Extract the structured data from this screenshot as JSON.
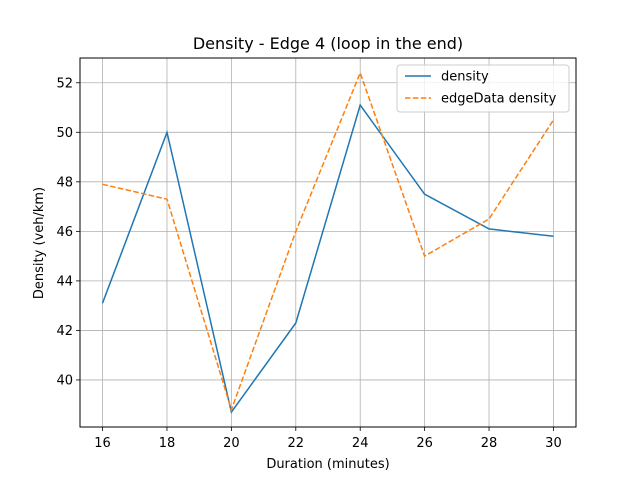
{
  "chart_data": {
    "type": "line",
    "title": "Density - Edge 4 (loop in the end)",
    "xlabel": "Duration (minutes)",
    "ylabel": "Density (veh/km)",
    "x": [
      16,
      18,
      20,
      22,
      24,
      26,
      28,
      30
    ],
    "xticks": [
      16,
      18,
      20,
      22,
      24,
      26,
      28,
      30
    ],
    "yticks": [
      40,
      42,
      44,
      46,
      48,
      50,
      52
    ],
    "xlim": [
      15.3,
      30.7
    ],
    "ylim": [
      38.1,
      53.0
    ],
    "grid": true,
    "legend_position": "upper right",
    "series": [
      {
        "name": "density",
        "color": "#1f77b4",
        "style": "solid",
        "values": [
          43.1,
          50.0,
          38.7,
          42.3,
          51.1,
          47.5,
          46.1,
          45.8
        ]
      },
      {
        "name": "edgeData density",
        "color": "#ff7f0e",
        "style": "dashed",
        "values": [
          47.9,
          47.3,
          38.8,
          46.0,
          52.4,
          45.0,
          46.5,
          50.5
        ]
      }
    ]
  }
}
